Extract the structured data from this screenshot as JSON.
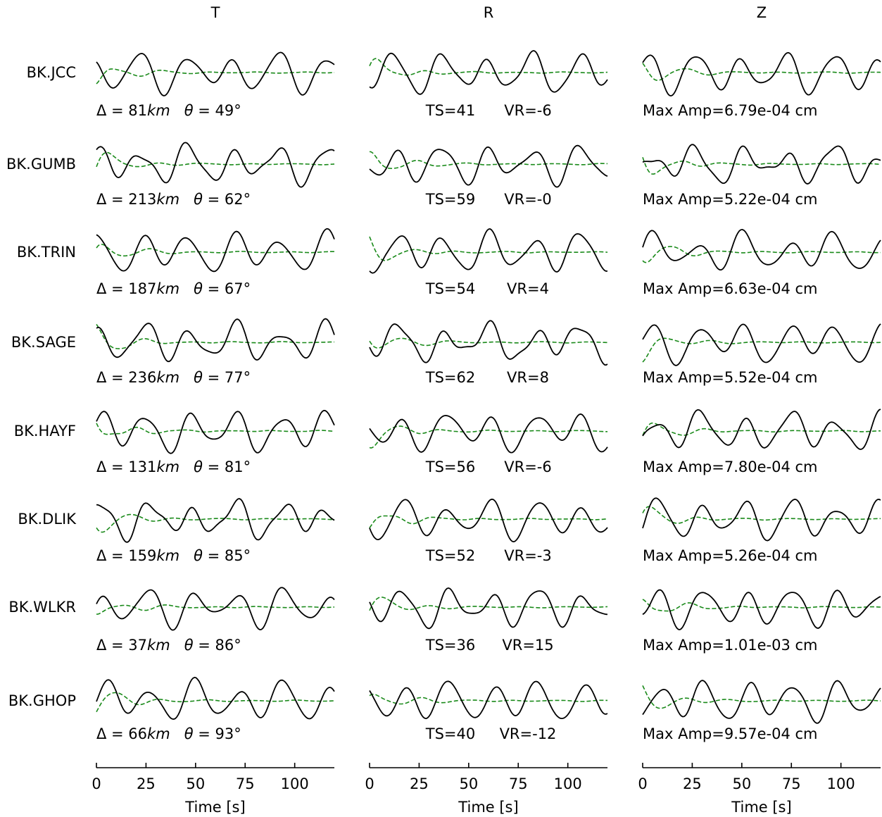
{
  "chart_data": {
    "type": "line",
    "title": "",
    "components": [
      "T",
      "R",
      "Z"
    ],
    "xlabel": "Time [s]",
    "xlim": [
      0,
      120
    ],
    "xticks": [
      0,
      25,
      50,
      75,
      100
    ],
    "series_legend": {
      "observed": {
        "color": "#000000",
        "style": "solid"
      },
      "synthetic": {
        "color": "#1a8a1a",
        "style": "dashed"
      }
    },
    "stations": [
      {
        "name": "BK.JCC",
        "T": {
          "dist": "81",
          "theta": "49"
        },
        "R": {
          "ts": "TS=41",
          "vr": "VR=-6"
        },
        "Z": {
          "amp": "Max Amp=6.79e-04 cm"
        }
      },
      {
        "name": "BK.GUMB",
        "T": {
          "dist": "213",
          "theta": "62"
        },
        "R": {
          "ts": "TS=59",
          "vr": "VR=-0"
        },
        "Z": {
          "amp": "Max Amp=5.22e-04 cm"
        }
      },
      {
        "name": "BK.TRIN",
        "T": {
          "dist": "187",
          "theta": "67"
        },
        "R": {
          "ts": "TS=54",
          "vr": "VR=4"
        },
        "Z": {
          "amp": "Max Amp=6.63e-04 cm"
        }
      },
      {
        "name": "BK.SAGE",
        "T": {
          "dist": "236",
          "theta": "77"
        },
        "R": {
          "ts": "TS=62",
          "vr": "VR=8"
        },
        "Z": {
          "amp": "Max Amp=5.52e-04 cm"
        }
      },
      {
        "name": "BK.HAYF",
        "T": {
          "dist": "131",
          "theta": "81"
        },
        "R": {
          "ts": "TS=56",
          "vr": "VR=-6"
        },
        "Z": {
          "amp": "Max Amp=7.80e-04 cm"
        }
      },
      {
        "name": "BK.DLIK",
        "T": {
          "dist": "159",
          "theta": "85"
        },
        "R": {
          "ts": "TS=52",
          "vr": "VR=-3"
        },
        "Z": {
          "amp": "Max Amp=5.26e-04 cm"
        }
      },
      {
        "name": "BK.WLKR",
        "T": {
          "dist": "37",
          "theta": "86"
        },
        "R": {
          "ts": "TS=36",
          "vr": "VR=15"
        },
        "Z": {
          "amp": "Max Amp=1.01e-03 cm"
        }
      },
      {
        "name": "BK.GHOP",
        "T": {
          "dist": "66",
          "theta": "93"
        },
        "R": {
          "ts": "TS=40",
          "vr": "VR=-12"
        },
        "Z": {
          "amp": "Max Amp=9.57e-04 cm"
        }
      }
    ]
  }
}
